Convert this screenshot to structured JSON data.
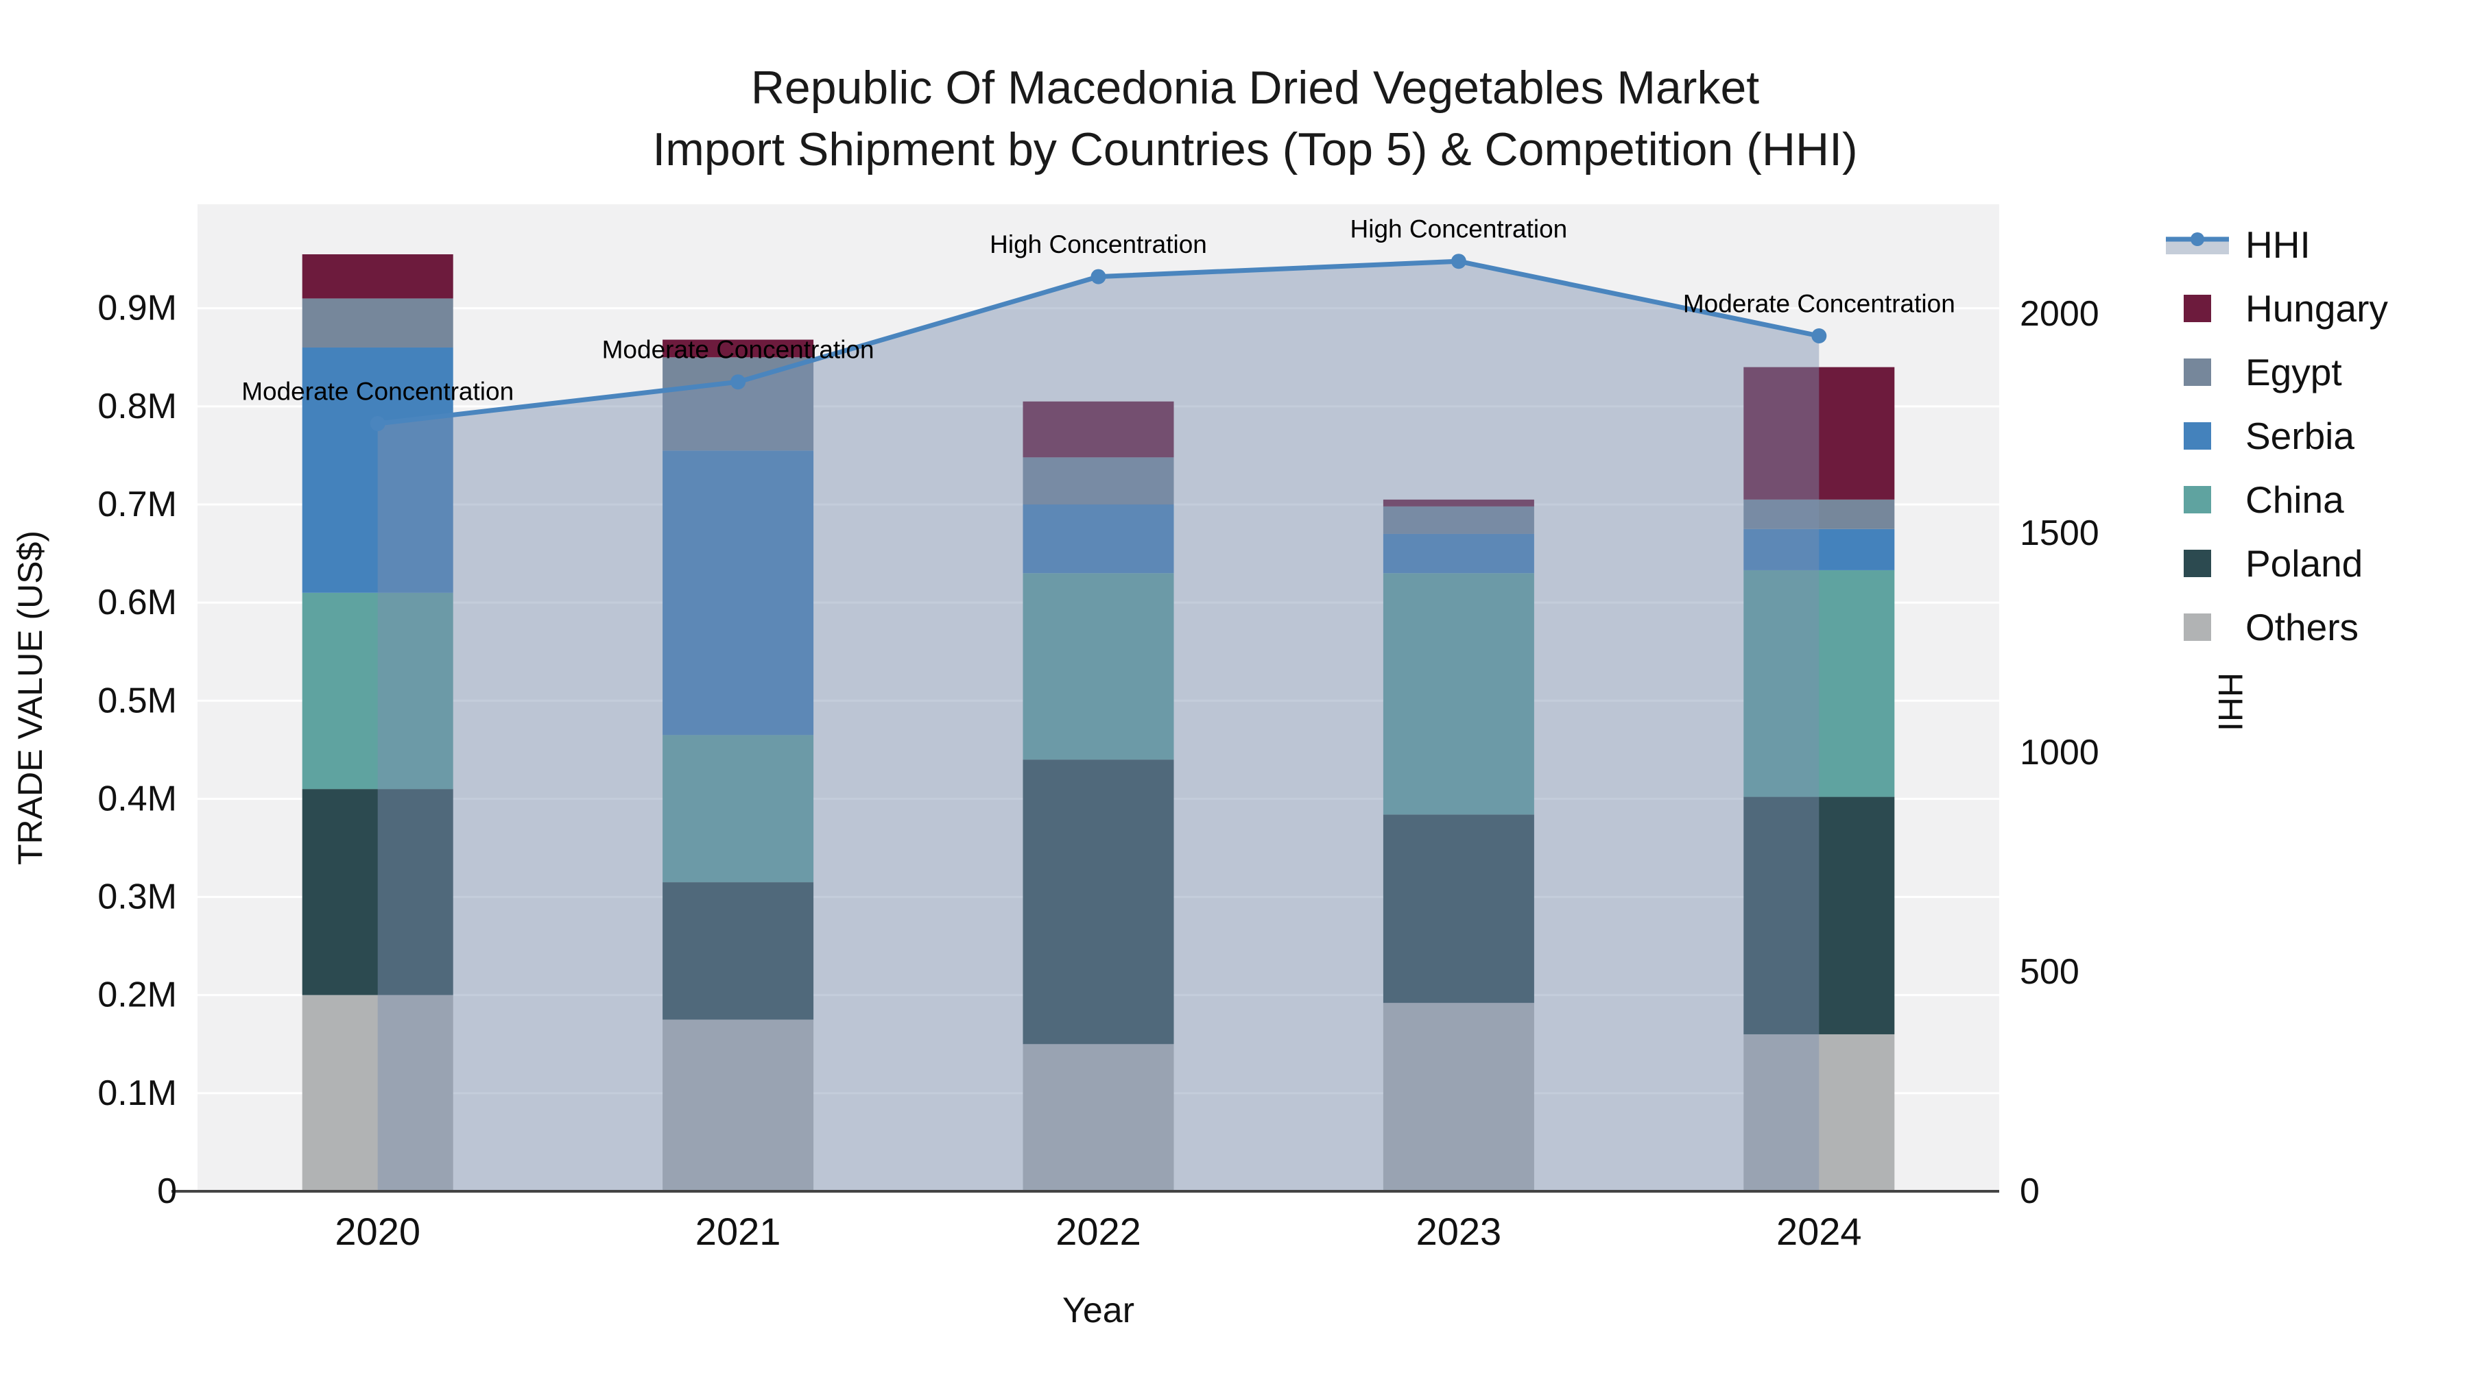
{
  "title": {
    "line1": "Republic Of Macedonia Dried Vegetables Market",
    "line2": "Import Shipment by Countries (Top 5) & Competition (HHI)"
  },
  "axes": {
    "y_left": {
      "title": "TRADE VALUE (US$)",
      "ticks": [
        {
          "value": 0,
          "label": "0"
        },
        {
          "value": 100000,
          "label": "0.1M"
        },
        {
          "value": 200000,
          "label": "0.2M"
        },
        {
          "value": 300000,
          "label": "0.3M"
        },
        {
          "value": 400000,
          "label": "0.4M"
        },
        {
          "value": 500000,
          "label": "0.5M"
        },
        {
          "value": 600000,
          "label": "0.6M"
        },
        {
          "value": 700000,
          "label": "0.7M"
        },
        {
          "value": 800000,
          "label": "0.8M"
        },
        {
          "value": 900000,
          "label": "0.9M"
        }
      ]
    },
    "y_right": {
      "title": "HHI",
      "ticks": [
        {
          "value": 0,
          "label": "0"
        },
        {
          "value": 500,
          "label": "500"
        },
        {
          "value": 1000,
          "label": "1000"
        },
        {
          "value": 1500,
          "label": "1500"
        },
        {
          "value": 2000,
          "label": "2000"
        }
      ]
    },
    "x": {
      "title": "Year"
    }
  },
  "legend": {
    "items": [
      {
        "label": "HHI",
        "type": "line",
        "color": "#4a85be"
      },
      {
        "label": "Hungary",
        "type": "swatch",
        "color": "#6d1b3d"
      },
      {
        "label": "Egypt",
        "type": "swatch",
        "color": "#76879b"
      },
      {
        "label": "Serbia",
        "type": "swatch",
        "color": "#4482bc"
      },
      {
        "label": "China",
        "type": "swatch",
        "color": "#5fa3a0"
      },
      {
        "label": "Poland",
        "type": "swatch",
        "color": "#2c4a50"
      },
      {
        "label": "Others",
        "type": "swatch",
        "color": "#b1b3b4"
      }
    ]
  },
  "chart_data": {
    "type": "bar+line",
    "title": "Republic Of Macedonia Dried Vegetables Market Import Shipment by Countries (Top 5) & Competition (HHI)",
    "categories": [
      "2020",
      "2021",
      "2022",
      "2023",
      "2024"
    ],
    "xlabel": "Year",
    "ylabel_left": "TRADE VALUE (US$)",
    "ylabel_right": "HHI",
    "ylim_left": [
      0,
      1006000
    ],
    "ylim_right": [
      0,
      2250
    ],
    "grid": true,
    "legend_position": "right",
    "stack_order_bottom_to_top": [
      "Others",
      "Poland",
      "China",
      "Serbia",
      "Egypt",
      "Hungary"
    ],
    "series": [
      {
        "name": "Others",
        "values": [
          200000,
          175000,
          150000,
          192000,
          160000
        ],
        "color": "#b1b3b4"
      },
      {
        "name": "Poland",
        "values": [
          210000,
          140000,
          290000,
          192000,
          242000
        ],
        "color": "#2c4a50"
      },
      {
        "name": "China",
        "values": [
          200000,
          150000,
          190000,
          246000,
          231000
        ],
        "color": "#5fa3a0"
      },
      {
        "name": "Serbia",
        "values": [
          250000,
          290000,
          70000,
          40000,
          42000
        ],
        "color": "#4482bc"
      },
      {
        "name": "Egypt",
        "values": [
          50000,
          95000,
          48000,
          28000,
          30000
        ],
        "color": "#76879b"
      },
      {
        "name": "Hungary",
        "values": [
          45000,
          18000,
          57000,
          7000,
          135000
        ],
        "color": "#6d1b3d"
      }
    ],
    "hhi_line": {
      "name": "HHI",
      "values": [
        1750,
        1845,
        2085,
        2120,
        1950
      ],
      "color": "#4a85be",
      "area_fill": "rgba(125,145,175,0.45)"
    },
    "annotations": [
      {
        "category": "2020",
        "text": "Moderate Concentration"
      },
      {
        "category": "2021",
        "text": "Moderate Concentration"
      },
      {
        "category": "2022",
        "text": "High Concentration"
      },
      {
        "category": "2023",
        "text": "High Concentration"
      },
      {
        "category": "2024",
        "text": "Moderate Concentration"
      }
    ],
    "colors": {
      "plot_background": "#f1f1f2",
      "gridline": "#ffffff",
      "axis_line": "#444444",
      "legend_area_band": "#c5cdd9"
    }
  }
}
